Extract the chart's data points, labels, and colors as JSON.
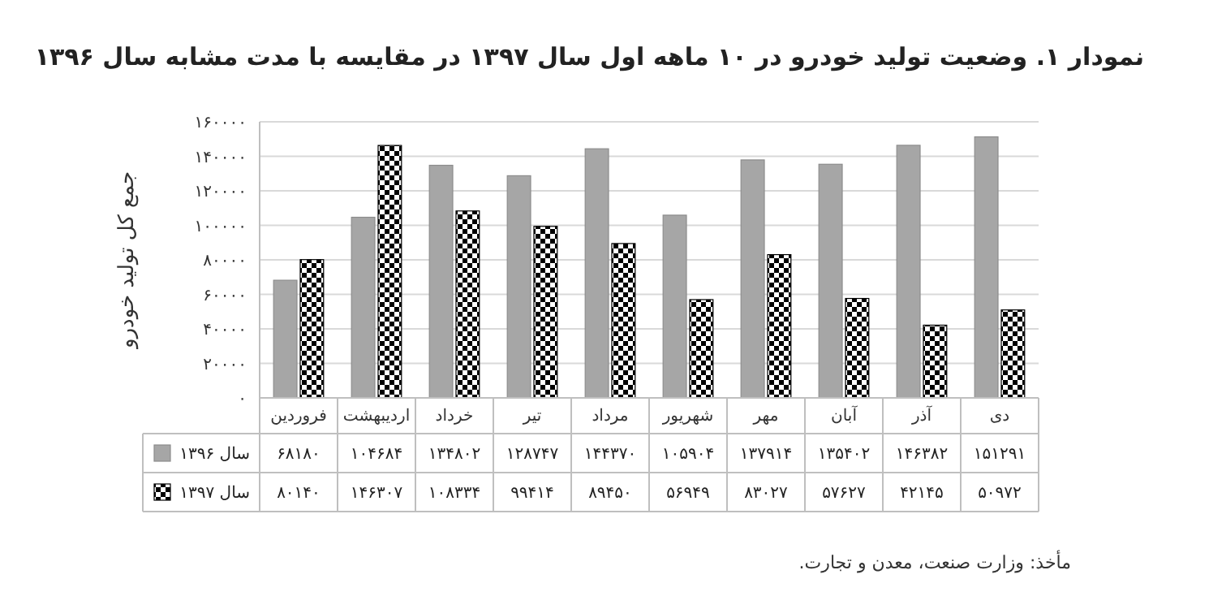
{
  "chart_data": {
    "type": "bar",
    "title": "نمودار ۱. وضعیت تولید خودرو در ۱۰ ماهه اول سال ۱۳۹۷ در مقایسه با مدت مشابه سال ۱۳۹۶",
    "ylabel": "جمع کل تولید خودرو",
    "categories": [
      "فروردین",
      "اردیبهشت",
      "خرداد",
      "تیر",
      "مرداد",
      "شهریور",
      "مهر",
      "آبان",
      "آذر",
      "دی"
    ],
    "series": [
      {
        "name": "سال ۱۳۹۶",
        "color": "#a6a6a6",
        "values": [
          68180,
          104684,
          134802,
          128747,
          144370,
          105904,
          137914,
          135402,
          146382,
          151291
        ],
        "value_labels": [
          "۶۸۱۸۰",
          "۱۰۴۶۸۴",
          "۱۳۴۸۰۲",
          "۱۲۸۷۴۷",
          "۱۴۴۳۷۰",
          "۱۰۵۹۰۴",
          "۱۳۷۹۱۴",
          "۱۳۵۴۰۲",
          "۱۴۶۳۸۲",
          "۱۵۱۲۹۱"
        ]
      },
      {
        "name": "سال ۱۳۹۷",
        "color": "#000000",
        "values": [
          80140,
          146307,
          108334,
          99414,
          89450,
          56949,
          83027,
          57627,
          42145,
          50972
        ],
        "value_labels": [
          "۸۰۱۴۰",
          "۱۴۶۳۰۷",
          "۱۰۸۳۳۴",
          "۹۹۴۱۴",
          "۸۹۴۵۰",
          "۵۶۹۴۹",
          "۸۳۰۲۷",
          "۵۷۶۲۷",
          "۴۲۱۴۵",
          "۵۰۹۷۲"
        ]
      }
    ],
    "ylim": [
      0,
      160000
    ],
    "yticks": [
      {
        "value": 0,
        "label": "۰"
      },
      {
        "value": 20000,
        "label": "۲۰۰۰۰"
      },
      {
        "value": 40000,
        "label": "۴۰۰۰۰"
      },
      {
        "value": 60000,
        "label": "۶۰۰۰۰"
      },
      {
        "value": 80000,
        "label": "۸۰۰۰۰"
      },
      {
        "value": 100000,
        "label": "۱۰۰۰۰۰"
      },
      {
        "value": 120000,
        "label": "۱۲۰۰۰۰"
      },
      {
        "value": 140000,
        "label": "۱۴۰۰۰۰"
      },
      {
        "value": 160000,
        "label": "۱۶۰۰۰۰"
      }
    ],
    "grid": "y",
    "legend": "bottom left",
    "annotations": [
      "مأخذ: وزارت صنعت، معدن و تجارت."
    ]
  }
}
